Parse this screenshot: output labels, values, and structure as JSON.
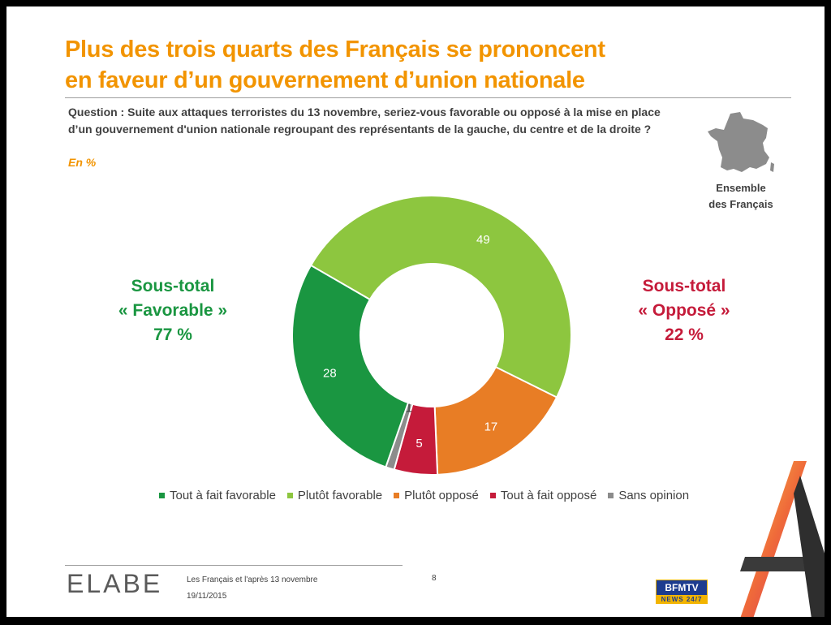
{
  "header": {
    "title_line1": "Plus des trois quarts des Français se prononcent",
    "title_line2": "en faveur d’un gouvernement d’union nationale",
    "question": "Question : Suite aux attaques terroristes du 13 novembre, seriez-vous favorable ou opposé à la mise en place d’un gouvernement d'union nationale regroupant des représentants de la gauche, du centre et de la droite ?",
    "unit": "En %"
  },
  "population": {
    "line1": "Ensemble",
    "line2": "des Français"
  },
  "subtotals": {
    "favorable": {
      "line1": "Sous-total",
      "line2": "« Favorable »",
      "value": "77 %"
    },
    "oppose": {
      "line1": "Sous-total",
      "line2": "« Opposé »",
      "value": "22 %"
    }
  },
  "chart_data": {
    "type": "pie",
    "title": "",
    "unit": "En %",
    "categories": [
      "Tout à fait favorable",
      "Plutôt favorable",
      "Plutôt opposé",
      "Tout à fait opposé",
      "Sans opinion"
    ],
    "values": [
      28,
      49,
      17,
      5,
      1
    ],
    "colors": [
      "#1a9641",
      "#8dc63f",
      "#e87d25",
      "#c51b3a",
      "#8c8c8c"
    ],
    "legend_position": "bottom"
  },
  "footer": {
    "logo": "ELABE",
    "line1": "Les Français et l'après 13 novembre",
    "line2": "19/11/2015",
    "page": "8",
    "brand_top": "BFMTV",
    "brand_bottom": "NEWS 24/7"
  }
}
